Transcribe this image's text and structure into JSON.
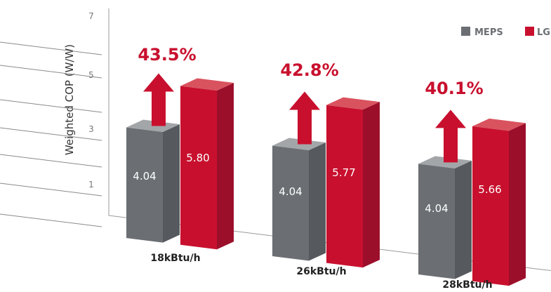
{
  "chart_data": {
    "type": "bar",
    "ylabel": "Weighted COP (W/W)",
    "ylim": [
      0,
      7
    ],
    "yticks": [
      "1",
      "3",
      "5",
      "7"
    ],
    "categories": [
      "18kBtu/h",
      "26kBtu/h",
      "28kBtu/h"
    ],
    "series": [
      {
        "name": "MEPS",
        "values": [
          4.04,
          4.04,
          4.04
        ],
        "labels": [
          "4.04",
          "4.04",
          "4.04"
        ]
      },
      {
        "name": "LG",
        "values": [
          5.8,
          5.77,
          5.66
        ],
        "labels": [
          "5.80",
          "5.77",
          "5.66"
        ]
      }
    ],
    "annotations": [
      "43.5%",
      "42.8%",
      "40.1%"
    ],
    "legend_position": "top-right",
    "colors": {
      "meps_front": "#6b6f73",
      "meps_side": "#565a5e",
      "meps_top": "#a3a6a9",
      "lg_front": "#c8102e",
      "lg_side": "#9c0f2b",
      "lg_top": "#d9535f",
      "arrow": "#c8102e"
    }
  }
}
